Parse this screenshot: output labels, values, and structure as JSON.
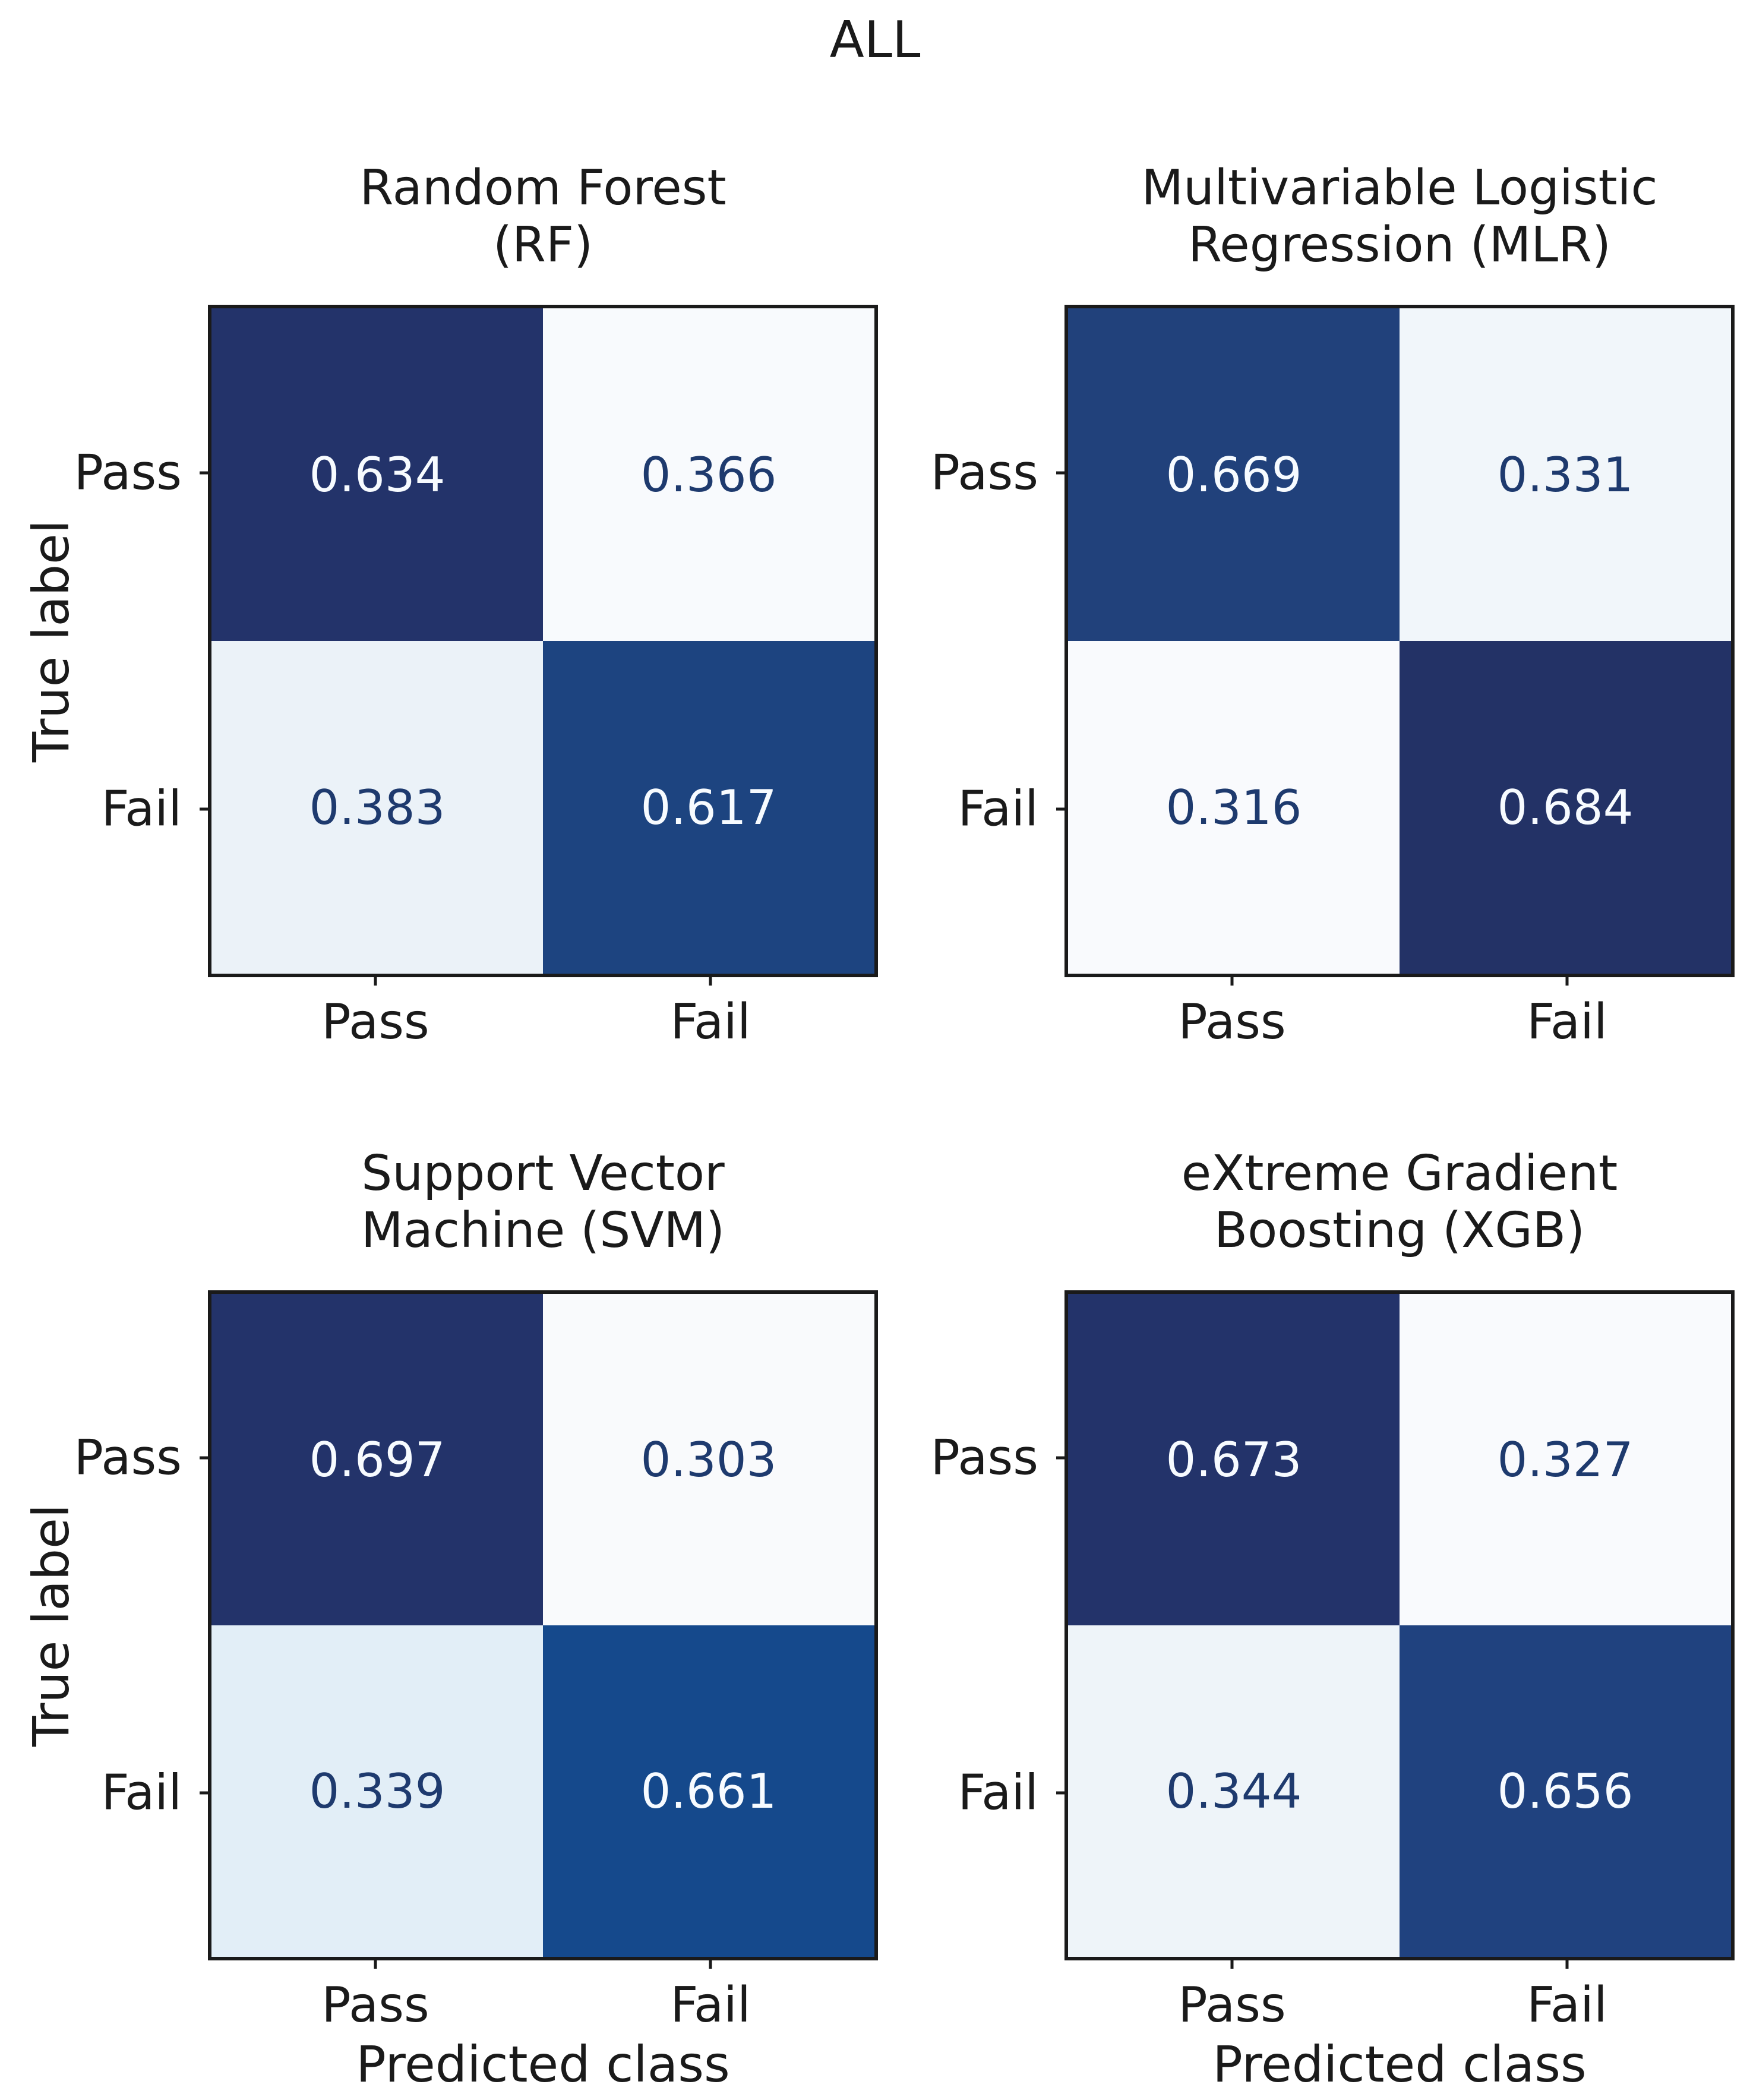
{
  "figure": {
    "suptitle": "ALL"
  },
  "shared": {
    "xlabel": "Predicted class",
    "ylabel": "True label",
    "classes": [
      "Pass",
      "Fail"
    ],
    "colors": {
      "axis": "#1a1a1a",
      "dark_text": "#1e3a6e",
      "light_text": "#f7fbff",
      "colormap": "Blues"
    }
  },
  "panels": [
    {
      "key": "rf",
      "title1": "Random Forest",
      "title2": "(RF)",
      "xticks": [
        "Pass",
        "Fail"
      ],
      "yticks": [
        "Pass",
        "Fail"
      ],
      "cells": [
        {
          "value": "0.634",
          "bg": "#23336a",
          "fg": "#f7fbff"
        },
        {
          "value": "0.366",
          "bg": "#f8fafd",
          "fg": "#1e3a6e"
        },
        {
          "value": "0.383",
          "bg": "#ebf2f8",
          "fg": "#1e3a6e"
        },
        {
          "value": "0.617",
          "bg": "#1d4480",
          "fg": "#f7fbff"
        }
      ]
    },
    {
      "key": "mlr",
      "title1": "Multivariable Logistic",
      "title2": "Regression (MLR)",
      "xticks": [
        "Pass",
        "Fail"
      ],
      "yticks": [
        "Pass",
        "Fail"
      ],
      "cells": [
        {
          "value": "0.669",
          "bg": "#21417b",
          "fg": "#f7fbff"
        },
        {
          "value": "0.331",
          "bg": "#f1f6fa",
          "fg": "#1e3a6e"
        },
        {
          "value": "0.316",
          "bg": "#f9fafd",
          "fg": "#1e3a6e"
        },
        {
          "value": "0.684",
          "bg": "#233266",
          "fg": "#f7fbff"
        }
      ]
    },
    {
      "key": "svm",
      "title1": "Support Vector",
      "title2": "Machine (SVM)",
      "xticks": [
        "Pass",
        "Fail"
      ],
      "yticks": [
        "Pass",
        "Fail"
      ],
      "cells": [
        {
          "value": "0.697",
          "bg": "#23336a",
          "fg": "#f7fbff"
        },
        {
          "value": "0.303",
          "bg": "#f9fafc",
          "fg": "#1e3a6e"
        },
        {
          "value": "0.339",
          "bg": "#e2eef7",
          "fg": "#1e3a6e"
        },
        {
          "value": "0.661",
          "bg": "#15498c",
          "fg": "#f7fbff"
        }
      ]
    },
    {
      "key": "xgb",
      "title1": "eXtreme Gradient",
      "title2": "Boosting (XGB)",
      "xticks": [
        "Pass",
        "Fail"
      ],
      "yticks": [
        "Pass",
        "Fail"
      ],
      "cells": [
        {
          "value": "0.673",
          "bg": "#23336a",
          "fg": "#f7fbff"
        },
        {
          "value": "0.327",
          "bg": "#f9fafd",
          "fg": "#1e3a6e"
        },
        {
          "value": "0.344",
          "bg": "#eef4f9",
          "fg": "#1e3a6e"
        },
        {
          "value": "0.656",
          "bg": "#20427f",
          "fg": "#f7fbff"
        }
      ]
    }
  ],
  "chart_data": [
    {
      "type": "heatmap",
      "suptitle": "ALL",
      "title": "Random Forest (RF)",
      "x_categories": [
        "Pass",
        "Fail"
      ],
      "y_categories": [
        "Pass",
        "Fail"
      ],
      "values": [
        [
          0.634,
          0.366
        ],
        [
          0.383,
          0.617
        ]
      ],
      "xlabel": "Predicted class",
      "ylabel": "True label",
      "colormap": "Blues",
      "value_range": [
        0,
        1
      ],
      "grid": false,
      "legend": "none"
    },
    {
      "type": "heatmap",
      "title": "Multivariable Logistic Regression (MLR)",
      "x_categories": [
        "Pass",
        "Fail"
      ],
      "y_categories": [
        "Pass",
        "Fail"
      ],
      "values": [
        [
          0.669,
          0.331
        ],
        [
          0.316,
          0.684
        ]
      ],
      "xlabel": "Predicted class",
      "ylabel": "True label",
      "colormap": "Blues",
      "value_range": [
        0,
        1
      ],
      "grid": false,
      "legend": "none"
    },
    {
      "type": "heatmap",
      "title": "Support Vector Machine (SVM)",
      "x_categories": [
        "Pass",
        "Fail"
      ],
      "y_categories": [
        "Pass",
        "Fail"
      ],
      "values": [
        [
          0.697,
          0.303
        ],
        [
          0.339,
          0.661
        ]
      ],
      "xlabel": "Predicted class",
      "ylabel": "True label",
      "colormap": "Blues",
      "value_range": [
        0,
        1
      ],
      "grid": false,
      "legend": "none"
    },
    {
      "type": "heatmap",
      "title": "eXtreme Gradient Boosting (XGB)",
      "x_categories": [
        "Pass",
        "Fail"
      ],
      "y_categories": [
        "Pass",
        "Fail"
      ],
      "values": [
        [
          0.673,
          0.327
        ],
        [
          0.344,
          0.656
        ]
      ],
      "xlabel": "Predicted class",
      "ylabel": "True label",
      "colormap": "Blues",
      "value_range": [
        0,
        1
      ],
      "grid": false,
      "legend": "none"
    }
  ]
}
